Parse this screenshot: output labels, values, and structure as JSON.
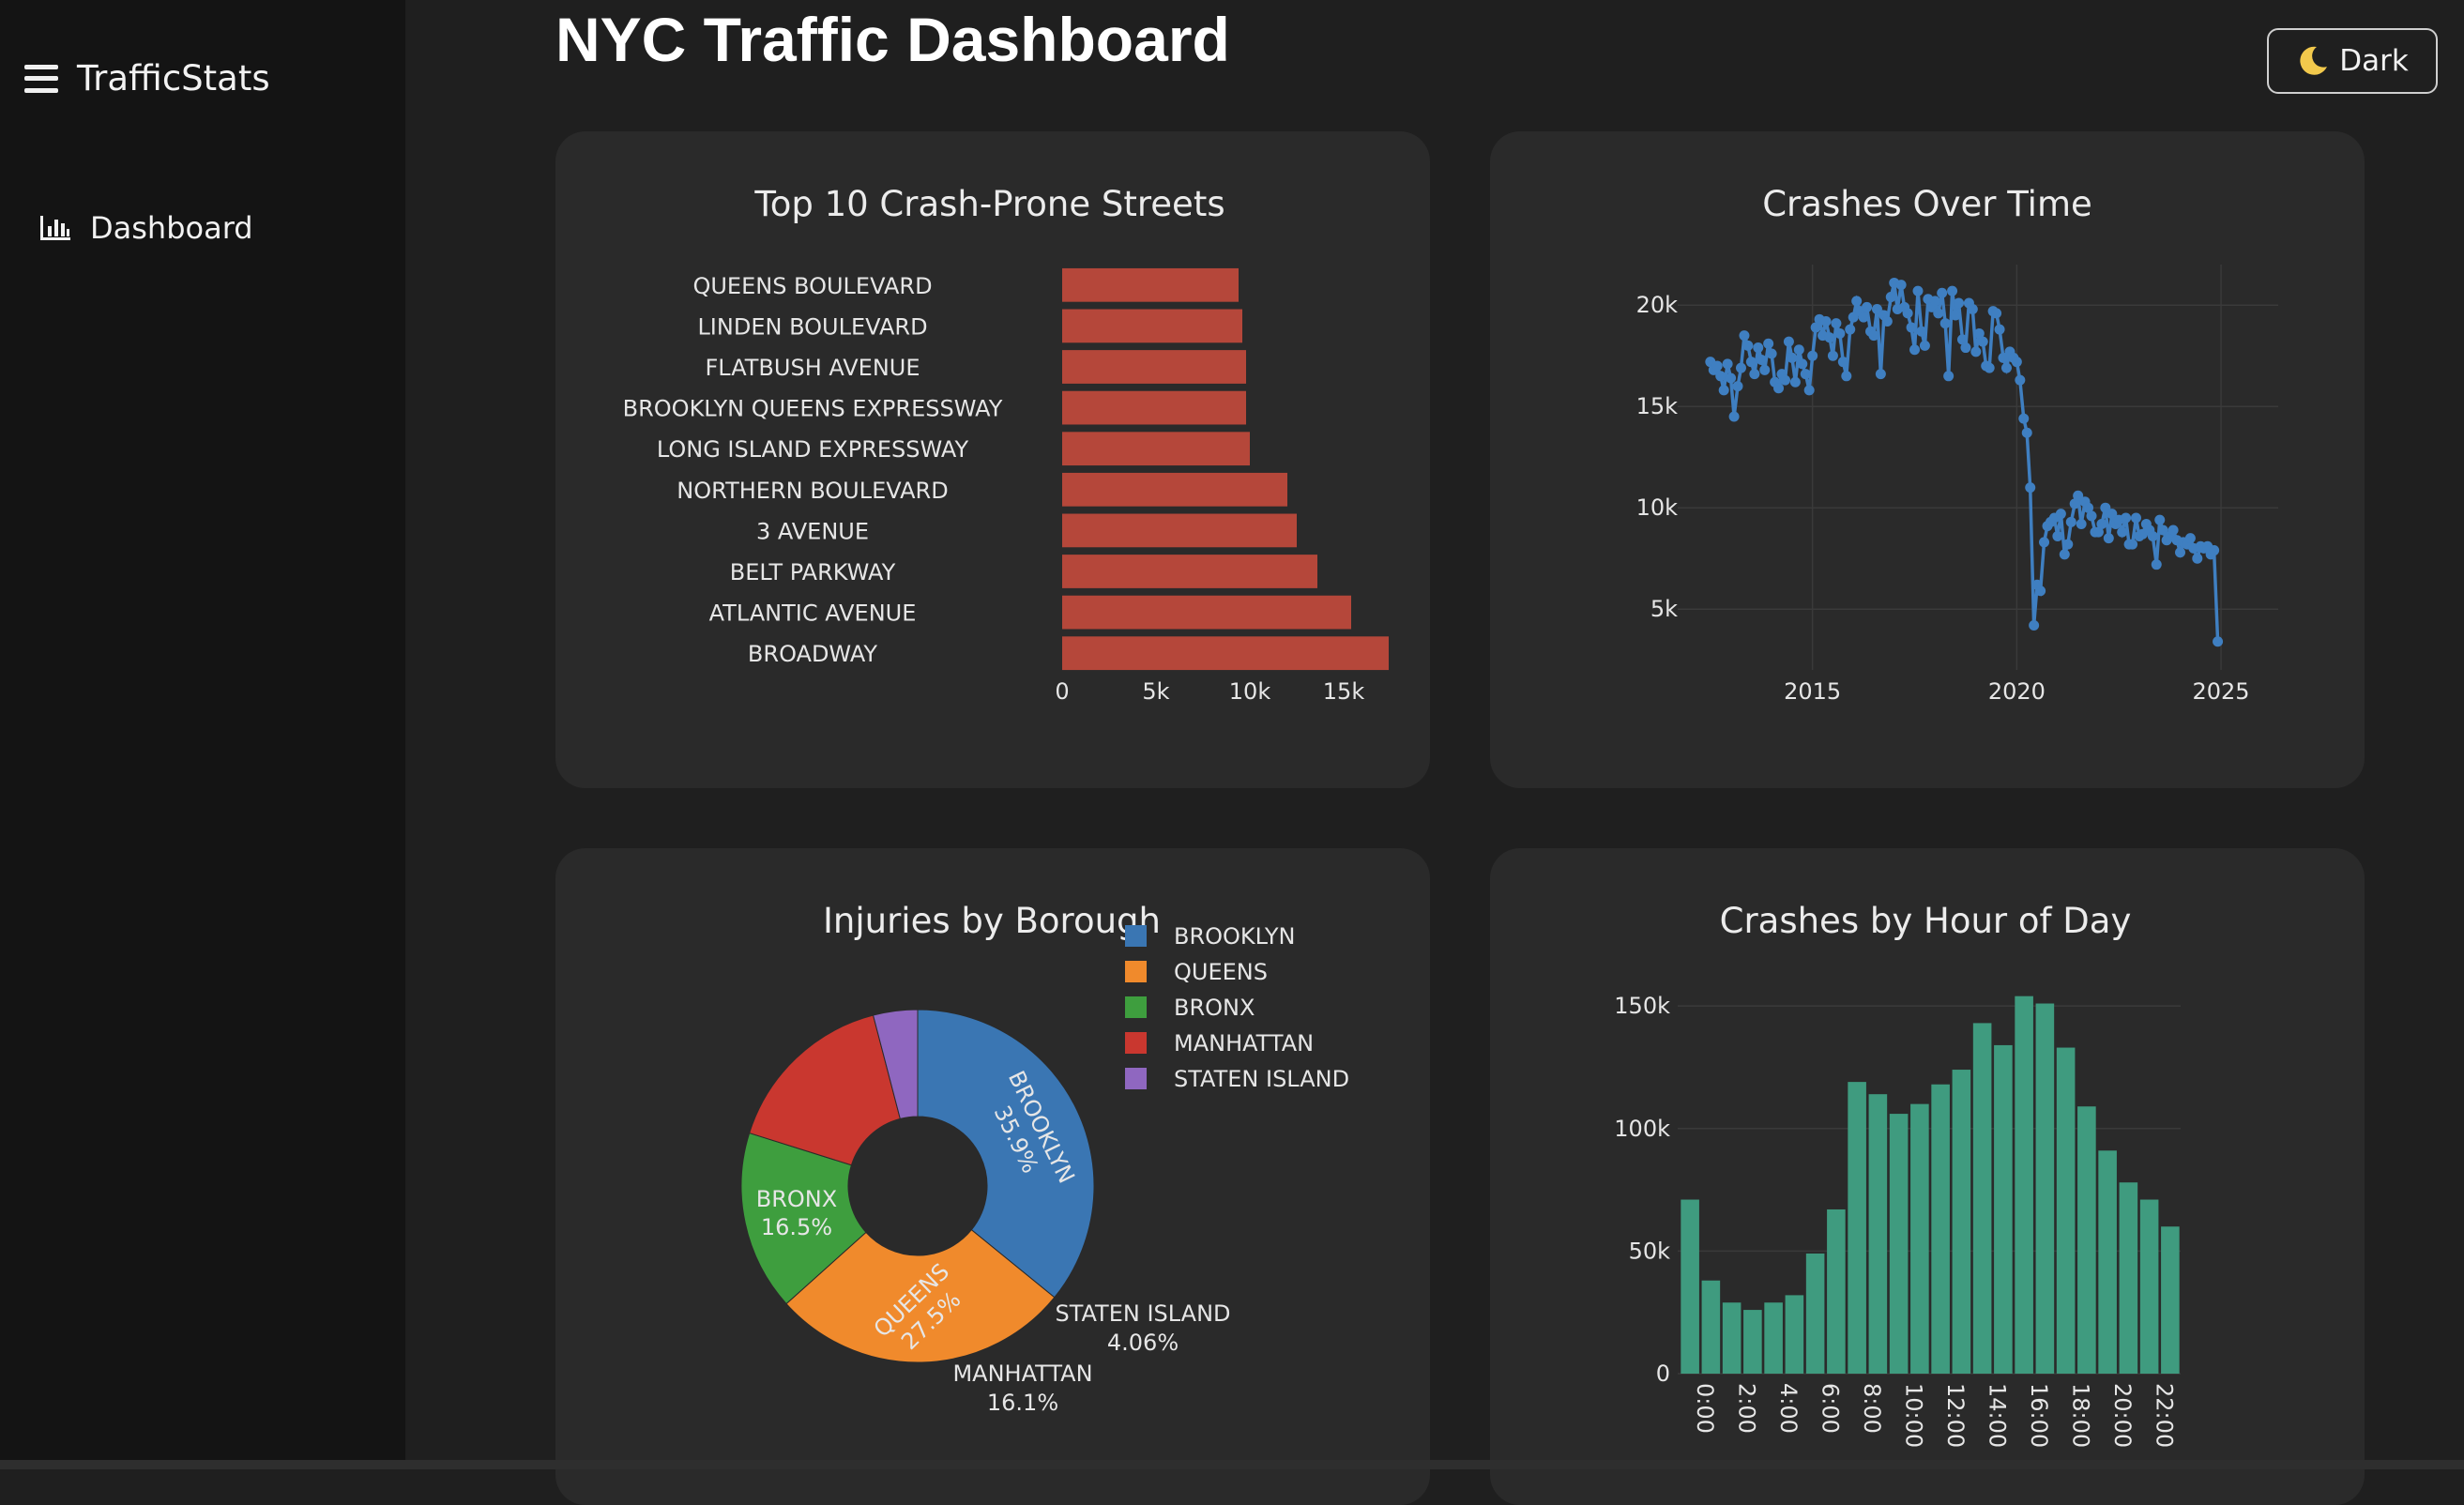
{
  "app": {
    "brand": "TrafficStats",
    "page_title": "NYC Traffic Dashboard",
    "theme_toggle_label": "Dark"
  },
  "sidebar": {
    "items": [
      {
        "label": "Dashboard",
        "icon": "bar-chart-icon"
      }
    ]
  },
  "colors": {
    "bar_streets": "#b5473a",
    "line": "#3f7fc1",
    "hour_bar": "#3f9b7f"
  },
  "chart_data": [
    {
      "id": "streets",
      "type": "bar",
      "orientation": "horizontal",
      "title": "Top 10 Crash-Prone Streets",
      "categories": [
        "QUEENS BOULEVARD",
        "LINDEN BOULEVARD",
        "FLATBUSH AVENUE",
        "BROOKLYN QUEENS EXPRESSWAY",
        "LONG ISLAND EXPRESSWAY",
        "NORTHERN BOULEVARD",
        "3 AVENUE",
        "BELT PARKWAY",
        "ATLANTIC AVENUE",
        "BROADWAY"
      ],
      "values": [
        9400,
        9600,
        9800,
        9800,
        10000,
        12000,
        12500,
        13600,
        15400,
        17400
      ],
      "xticks": [
        0,
        5000,
        10000,
        15000
      ],
      "xtick_labels": [
        "0",
        "5k",
        "10k",
        "15k"
      ],
      "xlim": [
        0,
        18000
      ]
    },
    {
      "id": "over_time",
      "type": "line",
      "title": "Crashes Over Time",
      "x": [
        2012.5,
        2012.58,
        2012.67,
        2012.75,
        2012.83,
        2012.92,
        2013.0,
        2013.08,
        2013.17,
        2013.25,
        2013.33,
        2013.42,
        2013.5,
        2013.58,
        2013.67,
        2013.75,
        2013.83,
        2013.92,
        2014.0,
        2014.08,
        2014.17,
        2014.25,
        2014.33,
        2014.42,
        2014.5,
        2014.58,
        2014.67,
        2014.75,
        2014.83,
        2014.92,
        2015.0,
        2015.08,
        2015.17,
        2015.25,
        2015.33,
        2015.42,
        2015.5,
        2015.58,
        2015.67,
        2015.75,
        2015.83,
        2015.92,
        2016.0,
        2016.08,
        2016.17,
        2016.25,
        2016.33,
        2016.42,
        2016.5,
        2016.58,
        2016.67,
        2016.75,
        2016.83,
        2016.92,
        2017.0,
        2017.08,
        2017.17,
        2017.25,
        2017.33,
        2017.42,
        2017.5,
        2017.58,
        2017.67,
        2017.75,
        2017.83,
        2017.92,
        2018.0,
        2018.08,
        2018.17,
        2018.25,
        2018.33,
        2018.42,
        2018.5,
        2018.58,
        2018.67,
        2018.75,
        2018.83,
        2018.92,
        2019.0,
        2019.08,
        2019.17,
        2019.25,
        2019.33,
        2019.42,
        2019.5,
        2019.58,
        2019.67,
        2019.75,
        2019.83,
        2019.92,
        2020.0,
        2020.08,
        2020.17,
        2020.25,
        2020.33,
        2020.42,
        2020.5,
        2020.58,
        2020.67,
        2020.75,
        2020.83,
        2020.92,
        2021.0,
        2021.08,
        2021.17,
        2021.25,
        2021.33,
        2021.42,
        2021.5,
        2021.58,
        2021.67,
        2021.75,
        2021.83,
        2021.92,
        2022.0,
        2022.08,
        2022.17,
        2022.25,
        2022.33,
        2022.42,
        2022.5,
        2022.58,
        2022.67,
        2022.75,
        2022.83,
        2022.92,
        2023.0,
        2023.08,
        2023.17,
        2023.25,
        2023.33,
        2023.42,
        2023.5,
        2023.58,
        2023.67,
        2023.75,
        2023.83,
        2023.92,
        2024.0,
        2024.08,
        2024.17,
        2024.25,
        2024.33,
        2024.42,
        2024.5,
        2024.58,
        2024.67,
        2024.75,
        2024.83,
        2024.92
      ],
      "values": [
        17200,
        16800,
        17000,
        16500,
        15800,
        17100,
        16400,
        14500,
        16000,
        16900,
        18500,
        18000,
        17200,
        16600,
        17900,
        17300,
        16800,
        18100,
        17600,
        16200,
        15900,
        16600,
        16300,
        18200,
        17400,
        16200,
        17800,
        17100,
        16600,
        15800,
        17500,
        18900,
        19300,
        18500,
        19200,
        18400,
        17500,
        19100,
        18600,
        17200,
        16500,
        18800,
        19400,
        20200,
        19700,
        19400,
        19900,
        18700,
        18500,
        19800,
        16600,
        19500,
        19200,
        20400,
        21100,
        19800,
        21000,
        19900,
        19600,
        18900,
        17800,
        20700,
        18700,
        18000,
        20300,
        19900,
        20200,
        19600,
        20600,
        19100,
        16500,
        20700,
        19500,
        20100,
        18300,
        17900,
        20100,
        19800,
        17700,
        18600,
        18200,
        17000,
        16900,
        19700,
        19600,
        18800,
        17400,
        16900,
        17700,
        17400,
        17200,
        16300,
        14400,
        13700,
        11000,
        4200,
        6200,
        5900,
        8300,
        9100,
        9300,
        9500,
        8600,
        9700,
        7700,
        8200,
        9300,
        10200,
        10600,
        9200,
        10300,
        10000,
        9600,
        8800,
        8800,
        9200,
        10000,
        8500,
        9700,
        9200,
        9400,
        8800,
        9500,
        8200,
        8200,
        9500,
        8600,
        8700,
        9200,
        8900,
        8600,
        7200,
        9400,
        8900,
        8400,
        8600,
        8900,
        8400,
        7800,
        8300,
        8200,
        8500,
        8000,
        7500,
        8100,
        8000,
        8100,
        7700,
        7900,
        3400
      ],
      "xticks": [
        2015,
        2020,
        2025
      ],
      "yticks": [
        5000,
        10000,
        15000,
        20000
      ],
      "ytick_labels": [
        "5k",
        "10k",
        "15k",
        "20k"
      ],
      "xlim": [
        2011.7,
        2026.4
      ],
      "ylim": [
        2000,
        22000
      ]
    },
    {
      "id": "boroughs",
      "type": "pie",
      "title": "Injuries by Borough",
      "labels": [
        "BROOKLYN",
        "QUEENS",
        "BRONX",
        "MANHATTAN",
        "STATEN ISLAND"
      ],
      "values": [
        35.9,
        27.5,
        16.5,
        16.1,
        4.06
      ],
      "percent_labels": [
        "35.9%",
        "27.5%",
        "16.5%",
        "16.1%",
        "4.06%"
      ],
      "colors": [
        "#3a76b3",
        "#f08a2c",
        "#3e9e3e",
        "#c9372f",
        "#8f67c0"
      ],
      "legend_position": "right"
    },
    {
      "id": "by_hour",
      "type": "bar",
      "title": "Crashes by Hour of Day",
      "categories": [
        "0:00",
        "1:00",
        "2:00",
        "3:00",
        "4:00",
        "5:00",
        "6:00",
        "7:00",
        "8:00",
        "9:00",
        "10:00",
        "11:00",
        "12:00",
        "13:00",
        "14:00",
        "15:00",
        "16:00",
        "17:00",
        "18:00",
        "19:00",
        "20:00",
        "21:00",
        "22:00",
        "23:00"
      ],
      "values": [
        71000,
        38000,
        29000,
        26000,
        29000,
        32000,
        49000,
        67000,
        119000,
        114000,
        106000,
        110000,
        118000,
        124000,
        143000,
        134000,
        154000,
        151000,
        133000,
        109000,
        91000,
        78000,
        71000,
        60000
      ],
      "tick_labels": [
        "0:00",
        "2:00",
        "4:00",
        "6:00",
        "8:00",
        "10:00",
        "12:00",
        "14:00",
        "16:00",
        "18:00",
        "20:00",
        "22:00"
      ],
      "yticks": [
        0,
        50000,
        100000,
        150000
      ],
      "ytick_labels": [
        "0",
        "50k",
        "100k",
        "150k"
      ],
      "ylim": [
        0,
        160000
      ]
    }
  ]
}
